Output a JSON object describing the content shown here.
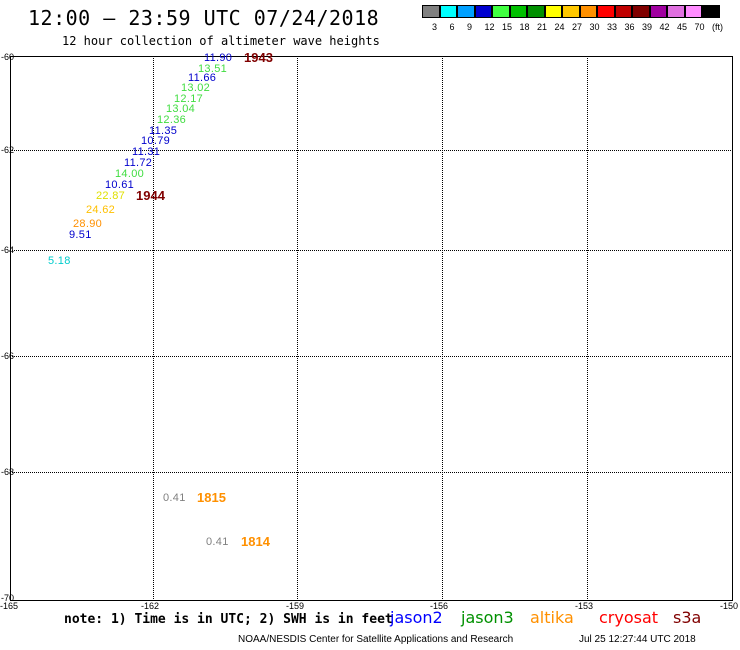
{
  "header": {
    "title": "12:00 — 23:59 UTC 07/24/2018",
    "subtitle": "12 hour collection of altimeter wave heights"
  },
  "legend": {
    "colors": [
      "#808080",
      "#00ffff",
      "#00a0ff",
      "#0000d0",
      "#40ff40",
      "#00c000",
      "#009000",
      "#ffff00",
      "#ffc800",
      "#ff9000",
      "#ff0000",
      "#c00000",
      "#800000",
      "#a000a0",
      "#e070e0",
      "#ff8cff",
      "#000000"
    ],
    "labels": [
      "3",
      "6",
      "9",
      "12",
      "15",
      "18",
      "21",
      "24",
      "27",
      "30",
      "33",
      "36",
      "39",
      "42",
      "45",
      "70",
      "(ft)"
    ]
  },
  "axes": {
    "lat_labels": [
      "-60",
      "-62",
      "-64",
      "-66",
      "-68",
      "-70"
    ],
    "lon_labels": [
      "-165",
      "-162",
      "-159",
      "-156",
      "-153",
      "-150"
    ]
  },
  "observations": [
    {
      "text": "11.90",
      "color": "#0000cc"
    },
    {
      "text": "13.51",
      "color": "#40dd40"
    },
    {
      "text": "11.66",
      "color": "#0000cc"
    },
    {
      "text": "13.02",
      "color": "#40dd40"
    },
    {
      "text": "12.17",
      "color": "#40dd40"
    },
    {
      "text": "13.04",
      "color": "#40dd40"
    },
    {
      "text": "12.36",
      "color": "#40dd40"
    },
    {
      "text": "11.35",
      "color": "#0000cc"
    },
    {
      "text": "10.79",
      "color": "#0000cc"
    },
    {
      "text": "11.31",
      "color": "#0000cc"
    },
    {
      "text": "11.72",
      "color": "#0000cc"
    },
    {
      "text": "14.00",
      "color": "#40dd40"
    },
    {
      "text": "10.61",
      "color": "#0000cc"
    },
    {
      "text": "22.87",
      "color": "#e0e000"
    },
    {
      "text": "24.62",
      "color": "#ffc000"
    },
    {
      "text": "28.90",
      "color": "#ff9000"
    },
    {
      "text": "9.51",
      "color": "#0000cc"
    },
    {
      "text": "5.18",
      "color": "#00cccc"
    },
    {
      "text": "0.41",
      "color": "#808080"
    },
    {
      "text": "0.41",
      "color": "#808080"
    }
  ],
  "hour_labels": [
    {
      "text": "1943",
      "color": "#800000"
    },
    {
      "text": "1944",
      "color": "#800000"
    },
    {
      "text": "1815",
      "color": "#ff9000"
    },
    {
      "text": "1814",
      "color": "#ff9000"
    }
  ],
  "footer": {
    "note": "note: 1) Time is in UTC; 2) SWH is in feet",
    "satellites": [
      {
        "name": "jason2",
        "color": "#0000ff"
      },
      {
        "name": "jason3",
        "color": "#009000"
      },
      {
        "name": "altika",
        "color": "#ff9000"
      },
      {
        "name": "cryosat",
        "color": "#ff0000"
      },
      {
        "name": "s3a",
        "color": "#800000"
      }
    ],
    "credit": "NOAA/NESDIS Center for Satellite Applications and Research",
    "timestamp": "Jul 25 12:27:44 UTC 2018"
  }
}
